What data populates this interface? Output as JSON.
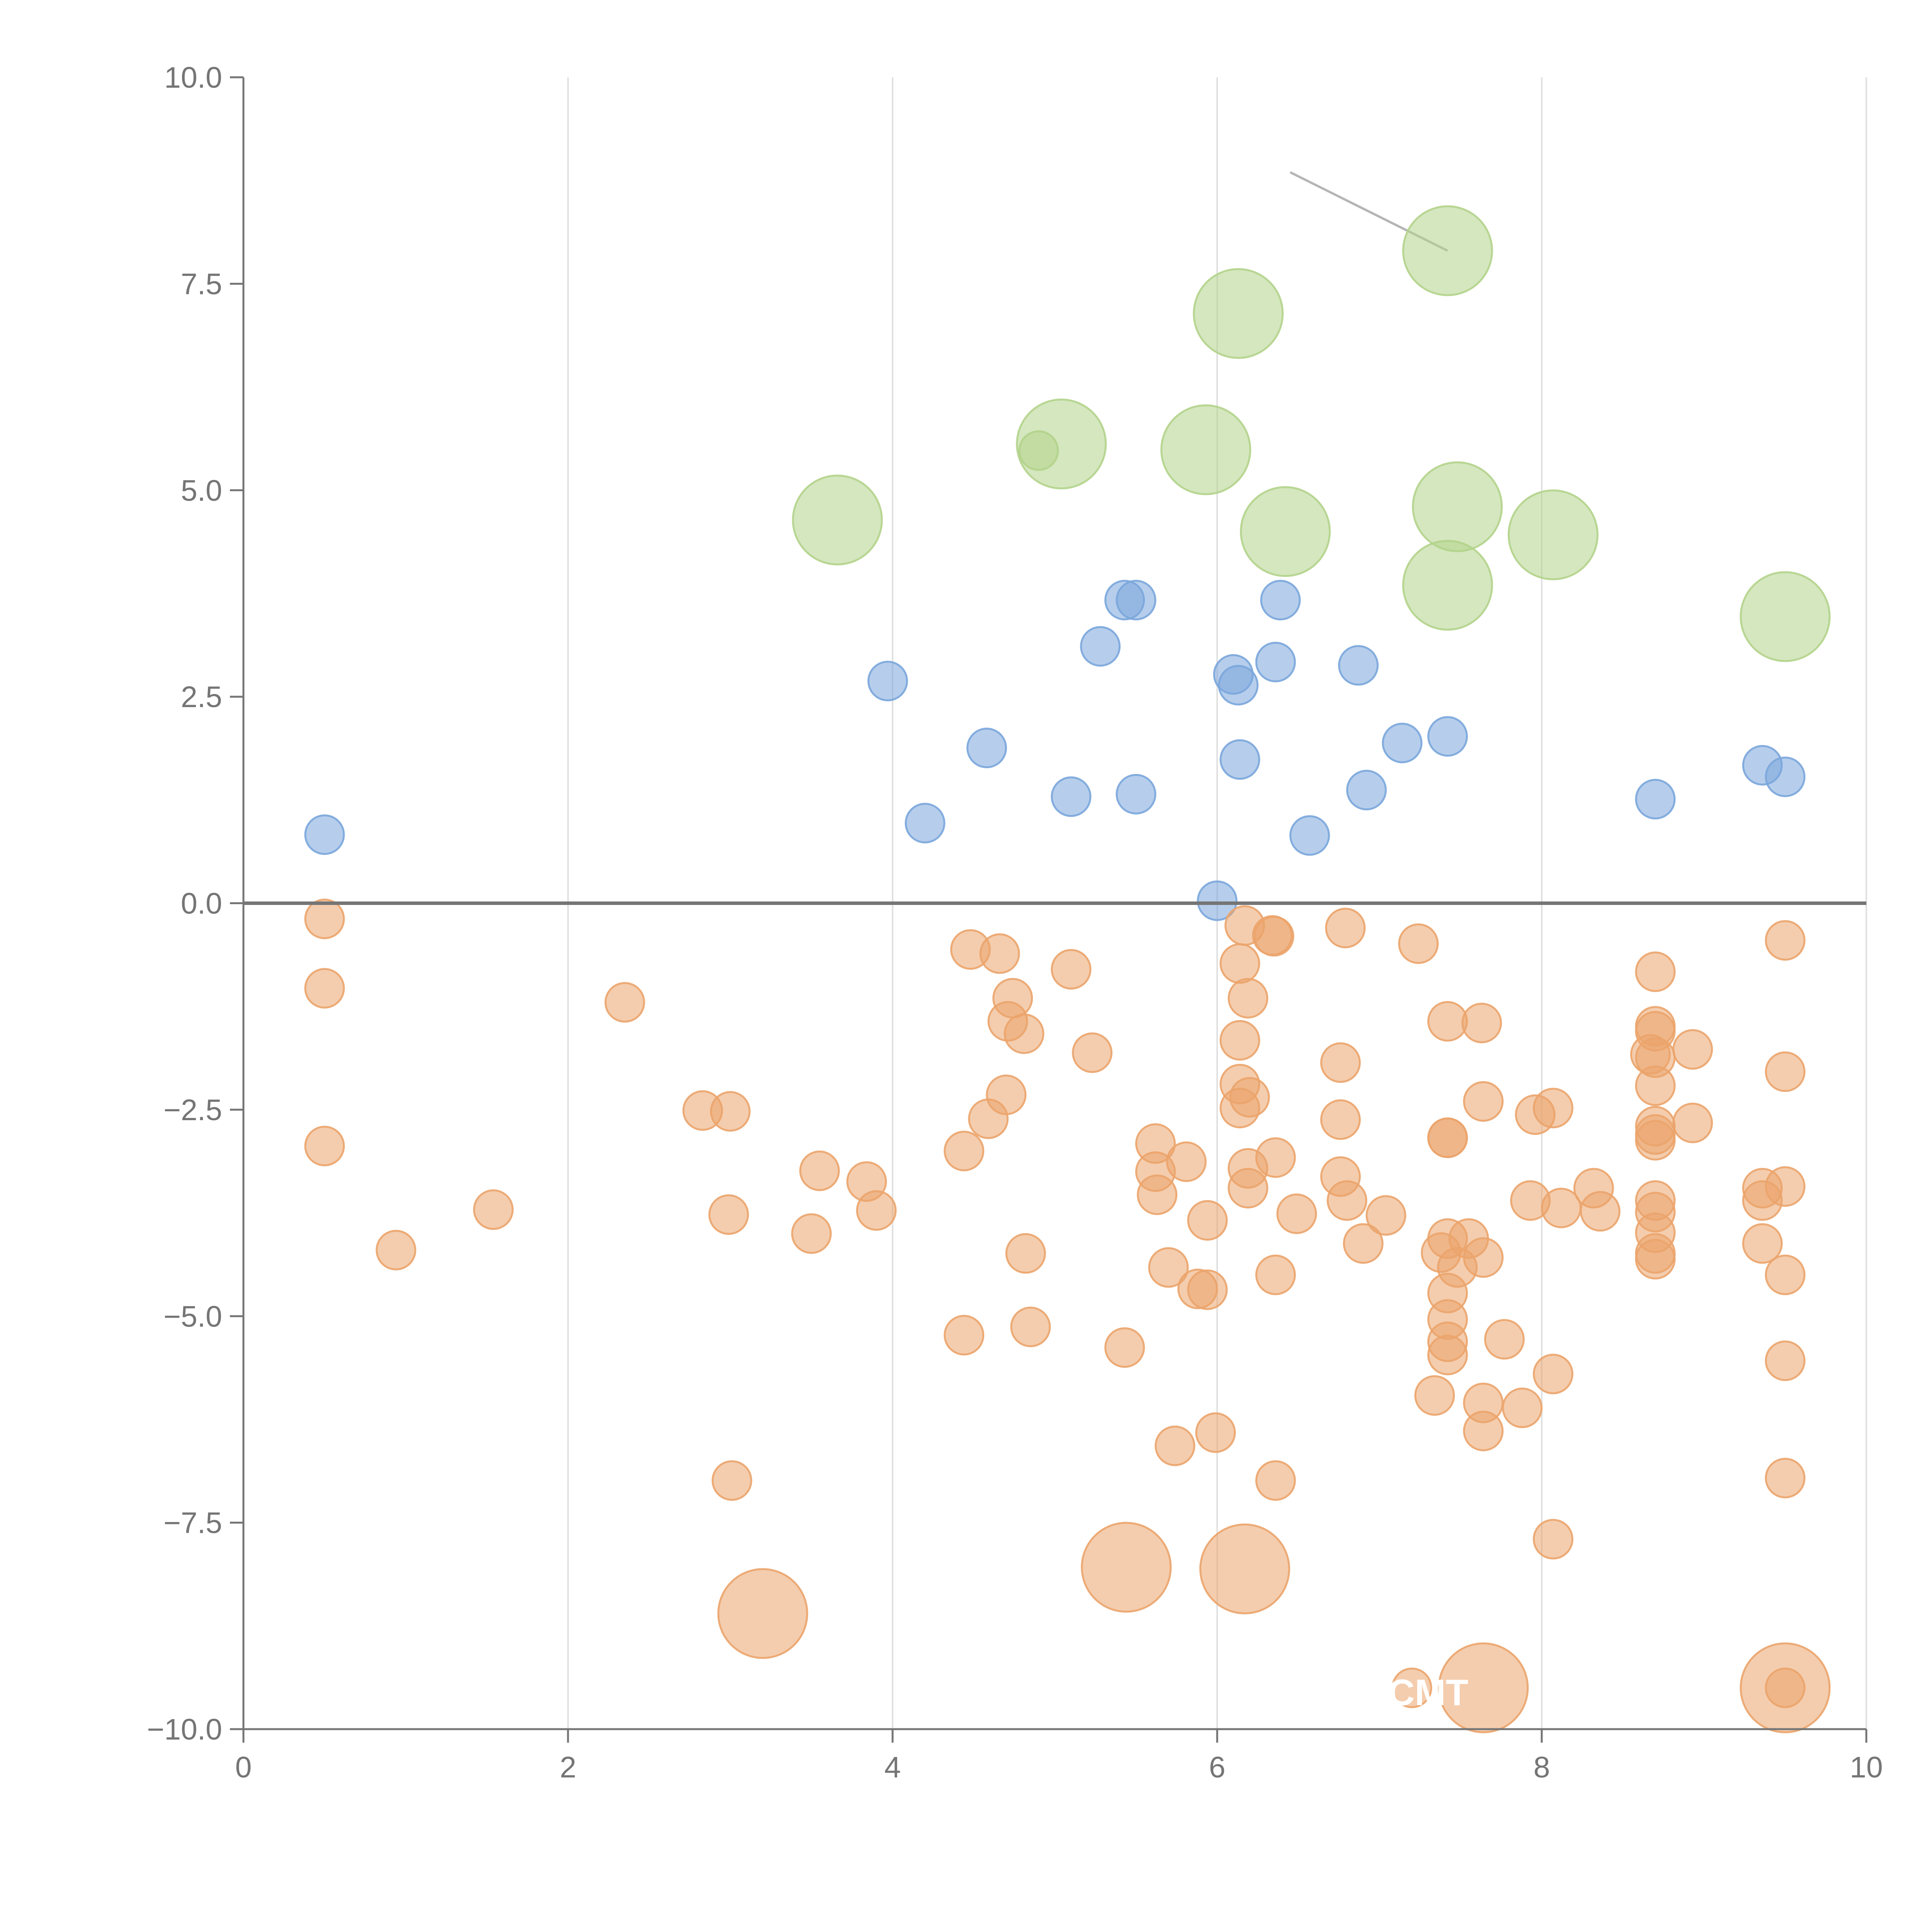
{
  "chart_data": {
    "type": "scatter",
    "title": "",
    "xlabel": "",
    "ylabel": "",
    "xlim": [
      0,
      10
    ],
    "ylim": [
      -10,
      10
    ],
    "grid": {
      "x": true,
      "y": false
    },
    "legend": "none",
    "x_ticks": [
      "0",
      "2",
      "4",
      "6",
      "8",
      "10"
    ],
    "y_ticks": [
      "−10.0",
      "−7.5",
      "−5.0",
      "−2.5",
      "0.0",
      "2.5",
      "5.0",
      "7.5",
      "10.0"
    ],
    "colors": {
      "blue": "#7aa6dc",
      "orange": "#eba46b",
      "green": "#b2d38b",
      "zero_line": "#757575",
      "axis": "#757575",
      "grid": "#e0e0e0"
    },
    "annotations": [
      {
        "text": "CMT",
        "x": 7.3,
        "y": -9.55
      }
    ],
    "series": [
      {
        "color_key": "blue",
        "size": "small",
        "points": [
          [
            0.5,
            0.83
          ],
          [
            3.97,
            2.69
          ],
          [
            4.2,
            0.97
          ],
          [
            4.58,
            1.88
          ],
          [
            5.1,
            1.29
          ],
          [
            5.28,
            3.11
          ],
          [
            5.43,
            3.67
          ],
          [
            5.5,
            3.67
          ],
          [
            5.5,
            1.32
          ],
          [
            6.0,
            0.03
          ],
          [
            6.1,
            2.77
          ],
          [
            6.13,
            2.64
          ],
          [
            6.14,
            1.74
          ],
          [
            6.36,
            2.92
          ],
          [
            6.39,
            3.67
          ],
          [
            6.57,
            0.82
          ],
          [
            6.87,
            2.88
          ],
          [
            6.92,
            1.37
          ],
          [
            7.14,
            1.94
          ],
          [
            7.42,
            2.02
          ],
          [
            8.7,
            1.26
          ],
          [
            9.36,
            1.67
          ],
          [
            9.5,
            1.53
          ]
        ]
      },
      {
        "color_key": "orange",
        "size": "small",
        "points": [
          [
            0.5,
            -0.19
          ],
          [
            0.5,
            -1.03
          ],
          [
            0.5,
            -2.94
          ],
          [
            0.94,
            -4.2
          ],
          [
            1.54,
            -3.71
          ],
          [
            2.35,
            -1.2
          ],
          [
            2.83,
            -2.51
          ],
          [
            2.99,
            -3.77
          ],
          [
            3.0,
            -2.52
          ],
          [
            3.01,
            -6.99
          ],
          [
            3.5,
            -4.0
          ],
          [
            3.55,
            -3.24
          ],
          [
            3.84,
            -3.37
          ],
          [
            3.9,
            -3.72
          ],
          [
            4.44,
            -3.0
          ],
          [
            4.44,
            -5.23
          ],
          [
            4.48,
            -0.56
          ],
          [
            4.59,
            -2.61
          ],
          [
            4.66,
            -0.61
          ],
          [
            4.7,
            -2.32
          ],
          [
            4.71,
            -1.43
          ],
          [
            4.74,
            -1.15
          ],
          [
            4.81,
            -1.58
          ],
          [
            4.82,
            -4.24
          ],
          [
            4.85,
            -5.13
          ],
          [
            5.1,
            -0.8
          ],
          [
            5.23,
            -1.81
          ],
          [
            5.43,
            -5.38
          ],
          [
            5.62,
            -2.91
          ],
          [
            5.62,
            -3.25
          ],
          [
            5.63,
            -3.53
          ],
          [
            5.7,
            -4.41
          ],
          [
            5.74,
            -6.57
          ],
          [
            5.81,
            -3.13
          ],
          [
            5.88,
            -4.67
          ],
          [
            5.94,
            -4.68
          ],
          [
            5.94,
            -3.84
          ],
          [
            5.99,
            -6.41
          ],
          [
            6.14,
            -0.73
          ],
          [
            6.14,
            -1.66
          ],
          [
            6.14,
            -2.19
          ],
          [
            6.14,
            -2.48
          ],
          [
            6.17,
            -0.27
          ],
          [
            6.19,
            -3.21
          ],
          [
            6.19,
            -3.45
          ],
          [
            6.19,
            -1.15
          ],
          [
            6.2,
            -2.35
          ],
          [
            6.34,
            -0.39
          ],
          [
            6.35,
            -0.4
          ],
          [
            6.36,
            -3.08
          ],
          [
            6.36,
            -4.5
          ],
          [
            6.36,
            -6.99
          ],
          [
            6.49,
            -3.76
          ],
          [
            6.76,
            -1.93
          ],
          [
            6.76,
            -2.62
          ],
          [
            6.76,
            -3.31
          ],
          [
            6.79,
            -0.3
          ],
          [
            6.8,
            -3.6
          ],
          [
            6.9,
            -4.12
          ],
          [
            7.04,
            -3.78
          ],
          [
            7.24,
            -0.49
          ],
          [
            7.34,
            -5.96
          ],
          [
            7.38,
            -4.23
          ],
          [
            7.42,
            -1.43
          ],
          [
            7.42,
            -2.84
          ],
          [
            7.42,
            -2.84
          ],
          [
            7.42,
            -4.06
          ],
          [
            7.42,
            -4.72
          ],
          [
            7.42,
            -5.04
          ],
          [
            7.42,
            -5.31
          ],
          [
            7.42,
            -5.47
          ],
          [
            7.48,
            -4.41
          ],
          [
            7.55,
            -4.06
          ],
          [
            7.63,
            -1.45
          ],
          [
            7.64,
            -2.4
          ],
          [
            7.64,
            -4.29
          ],
          [
            7.64,
            -6.05
          ],
          [
            7.64,
            -6.39
          ],
          [
            7.77,
            -5.28
          ],
          [
            7.88,
            -6.11
          ],
          [
            7.93,
            -3.6
          ],
          [
            7.96,
            -2.56
          ],
          [
            8.07,
            -2.48
          ],
          [
            8.07,
            -5.7
          ],
          [
            8.07,
            -7.7
          ],
          [
            8.12,
            -3.69
          ],
          [
            8.32,
            -3.45
          ],
          [
            8.36,
            -3.73
          ],
          [
            8.67,
            -1.83
          ],
          [
            8.7,
            -0.83
          ],
          [
            8.7,
            -1.49
          ],
          [
            8.7,
            -1.55
          ],
          [
            8.7,
            -1.87
          ],
          [
            8.7,
            -2.21
          ],
          [
            8.7,
            -2.7
          ],
          [
            8.7,
            -2.8
          ],
          [
            8.7,
            -2.87
          ],
          [
            8.7,
            -3.6
          ],
          [
            8.7,
            -3.74
          ],
          [
            8.7,
            -3.99
          ],
          [
            8.7,
            -4.24
          ],
          [
            8.7,
            -4.31
          ],
          [
            8.93,
            -1.77
          ],
          [
            8.93,
            -2.66
          ],
          [
            9.36,
            -3.45
          ],
          [
            9.36,
            -3.6
          ],
          [
            9.36,
            -4.12
          ],
          [
            9.5,
            -0.45
          ],
          [
            9.5,
            -2.04
          ],
          [
            9.5,
            -3.43
          ],
          [
            9.5,
            -4.5
          ],
          [
            9.5,
            -5.54
          ],
          [
            9.5,
            -6.96
          ],
          [
            9.5,
            -9.5
          ],
          [
            7.2,
            -9.5
          ]
        ]
      },
      {
        "color_key": "orange",
        "size": "large",
        "points": [
          [
            5.44,
            -8.04
          ],
          [
            6.17,
            -8.06
          ],
          [
            3.2,
            -8.6
          ],
          [
            7.64,
            -9.5
          ],
          [
            9.5,
            -9.5
          ]
        ]
      },
      {
        "color_key": "green",
        "size": "small",
        "points": [
          [
            4.9,
            5.48
          ]
        ]
      },
      {
        "color_key": "green",
        "size": "large",
        "points": [
          [
            3.66,
            4.64
          ],
          [
            5.04,
            5.56
          ],
          [
            5.93,
            5.49
          ],
          [
            6.13,
            7.14
          ],
          [
            6.42,
            4.5
          ],
          [
            7.42,
            3.85
          ],
          [
            7.42,
            7.9
          ],
          [
            7.48,
            4.8
          ],
          [
            8.07,
            4.46
          ],
          [
            9.5,
            3.47
          ]
        ]
      }
    ]
  }
}
